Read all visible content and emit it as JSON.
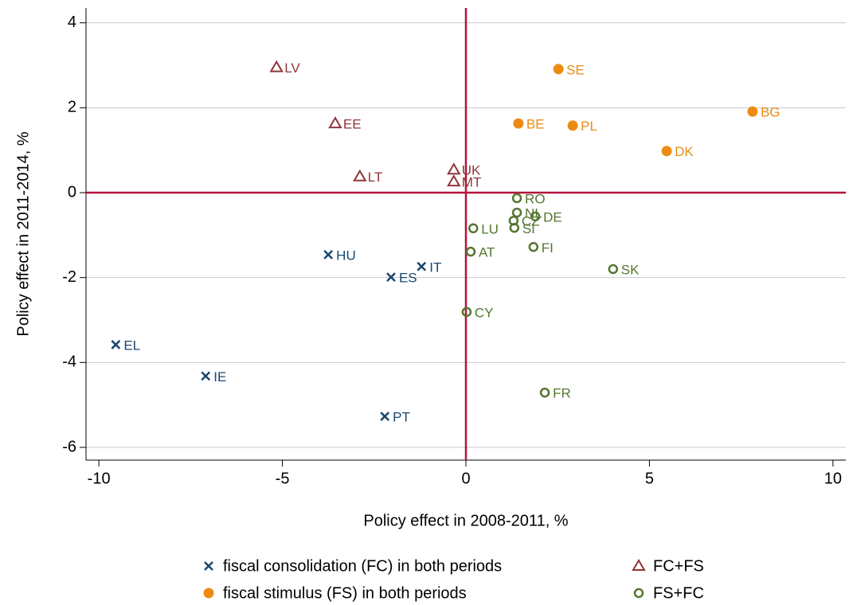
{
  "chart_data": {
    "type": "scatter",
    "x_label": "Policy effect in 2008-2011, %",
    "y_label": "Policy effect in 2011-2014, %",
    "xlim": [
      -10.35,
      10.35
    ],
    "ylim": [
      -6.3,
      4.35
    ],
    "xticks": [
      -10,
      -5,
      0,
      5,
      10
    ],
    "yticks": [
      -6,
      -4,
      -2,
      0,
      2,
      4
    ],
    "grid": true,
    "xline": 0,
    "yline": 0,
    "refline_color": "#b5123b",
    "series": [
      {
        "name": "fiscal consolidation (FC) in both periods",
        "color": "#1a476f",
        "marker": "x",
        "labels": [
          "EL",
          "IE",
          "PT",
          "HU",
          "ES",
          "IT"
        ],
        "x": [
          -9.54,
          -7.09,
          -2.21,
          -3.75,
          -2.04,
          -1.21
        ],
        "values": [
          -3.58,
          -4.32,
          -5.27,
          -1.46,
          -1.99,
          -1.74
        ]
      },
      {
        "name": "fiscal stimulus (FS) in both periods",
        "color": "#ec8b13",
        "marker": "circle",
        "labels": [
          "SE",
          "BE",
          "PL",
          "BG",
          "DK"
        ],
        "x": [
          2.52,
          1.43,
          2.91,
          7.81,
          5.47
        ],
        "values": [
          2.91,
          1.63,
          1.58,
          1.91,
          0.98
        ]
      },
      {
        "name": "FC+FS",
        "color": "#90353b",
        "marker": "triangle",
        "labels": [
          "LV",
          "EE",
          "LT",
          "UK",
          "MT"
        ],
        "x": [
          -5.16,
          -3.56,
          -2.89,
          -0.33,
          -0.33
        ],
        "values": [
          2.95,
          1.63,
          0.38,
          0.54,
          0.26
        ]
      },
      {
        "name": "FS+FC",
        "color": "#55752f",
        "marker": "circle-open",
        "labels": [
          "RO",
          "NL",
          "CZ",
          "DE",
          "SI",
          "LU",
          "FI",
          "AT",
          "SK",
          "CY",
          "FR"
        ],
        "x": [
          1.39,
          1.39,
          1.3,
          1.89,
          1.32,
          0.2,
          1.84,
          0.13,
          4.01,
          0.02,
          2.15
        ],
        "values": [
          -0.13,
          -0.47,
          -0.66,
          -0.56,
          -0.83,
          -0.84,
          -1.28,
          -1.39,
          -1.8,
          -2.81,
          -4.71
        ]
      }
    ]
  }
}
